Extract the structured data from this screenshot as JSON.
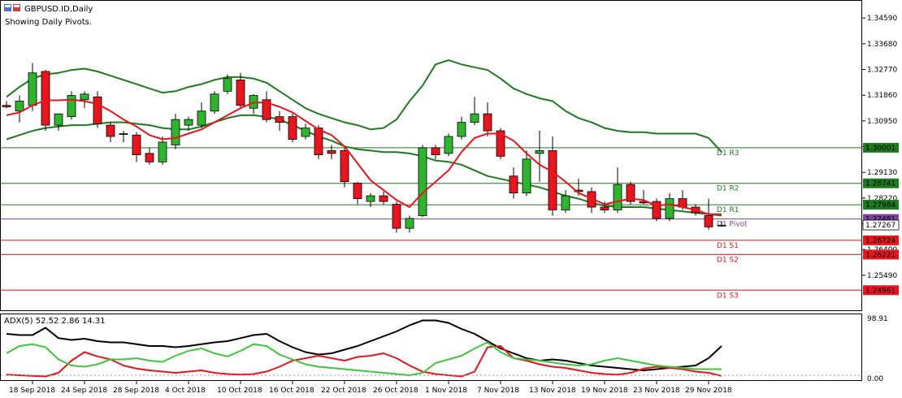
{
  "window": {
    "title": "GBPUSD.ID,Daily",
    "subtitle": "Showing Daily Pivots."
  },
  "colors": {
    "bull": "#2db62d",
    "bear": "#e8141e",
    "ma": "#e8141e",
    "bands": "#1e7a1e",
    "resistance": "#1e7a1e",
    "support": "#e8141e",
    "pivot": "#8040a0",
    "adx_main": "#000000",
    "adx_plus": "#e8141e",
    "adx_minus": "#3cc83c"
  },
  "chart_data": [
    {
      "type": "candlestick",
      "title": "GBPUSD.ID,Daily",
      "ylim": [
        1.2425,
        1.352
      ],
      "yticks": [
        "1.34590",
        "1.33680",
        "1.32770",
        "1.31860",
        "1.30950",
        "1.30040",
        "1.29130",
        "1.28220",
        "1.27310",
        "1.26400",
        "1.25490"
      ],
      "xticks": [
        {
          "label": "18 Sep 2018",
          "index": 2
        },
        {
          "label": "24 Sep 2018",
          "index": 6
        },
        {
          "label": "28 Sep 2018",
          "index": 10
        },
        {
          "label": "4 Oct 2018",
          "index": 14
        },
        {
          "label": "10 Oct 2018",
          "index": 18
        },
        {
          "label": "16 Oct 2018",
          "index": 22
        },
        {
          "label": "22 Oct 2018",
          "index": 26
        },
        {
          "label": "26 Oct 2018",
          "index": 30
        },
        {
          "label": "1 Nov 2018",
          "index": 34
        },
        {
          "label": "7 Nov 2018",
          "index": 38
        },
        {
          "label": "13 Nov 2018",
          "index": 42
        },
        {
          "label": "19 Nov 2018",
          "index": 46
        },
        {
          "label": "23 Nov 2018",
          "index": 50
        },
        {
          "label": "29 Nov 2018",
          "index": 54
        }
      ],
      "candles": [
        {
          "o": 1.315,
          "h": 1.3165,
          "l": 1.314,
          "c": 1.3145
        },
        {
          "o": 1.313,
          "h": 1.3185,
          "l": 1.309,
          "c": 1.3165
        },
        {
          "o": 1.315,
          "h": 1.33,
          "l": 1.313,
          "c": 1.3265
        },
        {
          "o": 1.327,
          "h": 1.3275,
          "l": 1.306,
          "c": 1.308
        },
        {
          "o": 1.308,
          "h": 1.312,
          "l": 1.306,
          "c": 1.312
        },
        {
          "o": 1.311,
          "h": 1.32,
          "l": 1.31,
          "c": 1.3185
        },
        {
          "o": 1.317,
          "h": 1.32,
          "l": 1.314,
          "c": 1.319
        },
        {
          "o": 1.318,
          "h": 1.32,
          "l": 1.307,
          "c": 1.3085
        },
        {
          "o": 1.308,
          "h": 1.309,
          "l": 1.302,
          "c": 1.304
        },
        {
          "o": 1.305,
          "h": 1.306,
          "l": 1.302,
          "c": 1.305
        },
        {
          "o": 1.3045,
          "h": 1.3055,
          "l": 1.295,
          "c": 1.2975
        },
        {
          "o": 1.298,
          "h": 1.3,
          "l": 1.294,
          "c": 1.295
        },
        {
          "o": 1.295,
          "h": 1.304,
          "l": 1.294,
          "c": 1.302
        },
        {
          "o": 1.301,
          "h": 1.312,
          "l": 1.2995,
          "c": 1.31
        },
        {
          "o": 1.308,
          "h": 1.311,
          "l": 1.306,
          "c": 1.31
        },
        {
          "o": 1.308,
          "h": 1.316,
          "l": 1.307,
          "c": 1.313
        },
        {
          "o": 1.313,
          "h": 1.32,
          "l": 1.312,
          "c": 1.319
        },
        {
          "o": 1.32,
          "h": 1.326,
          "l": 1.319,
          "c": 1.3245
        },
        {
          "o": 1.324,
          "h": 1.3265,
          "l": 1.314,
          "c": 1.315
        },
        {
          "o": 1.314,
          "h": 1.319,
          "l": 1.312,
          "c": 1.3185
        },
        {
          "o": 1.317,
          "h": 1.32,
          "l": 1.309,
          "c": 1.31
        },
        {
          "o": 1.311,
          "h": 1.313,
          "l": 1.306,
          "c": 1.309
        },
        {
          "o": 1.311,
          "h": 1.312,
          "l": 1.302,
          "c": 1.303
        },
        {
          "o": 1.304,
          "h": 1.3085,
          "l": 1.303,
          "c": 1.307
        },
        {
          "o": 1.307,
          "h": 1.308,
          "l": 1.296,
          "c": 1.2975
        },
        {
          "o": 1.299,
          "h": 1.301,
          "l": 1.296,
          "c": 1.298
        },
        {
          "o": 1.299,
          "h": 1.3,
          "l": 1.286,
          "c": 1.288
        },
        {
          "o": 1.2875,
          "h": 1.288,
          "l": 1.28,
          "c": 1.282
        },
        {
          "o": 1.281,
          "h": 1.284,
          "l": 1.279,
          "c": 1.283
        },
        {
          "o": 1.283,
          "h": 1.2845,
          "l": 1.28,
          "c": 1.281
        },
        {
          "o": 1.28,
          "h": 1.281,
          "l": 1.27,
          "c": 1.2715
        },
        {
          "o": 1.2715,
          "h": 1.276,
          "l": 1.27,
          "c": 1.275
        },
        {
          "o": 1.276,
          "h": 1.301,
          "l": 1.2755,
          "c": 1.3
        },
        {
          "o": 1.3,
          "h": 1.301,
          "l": 1.296,
          "c": 1.2975
        },
        {
          "o": 1.298,
          "h": 1.305,
          "l": 1.297,
          "c": 1.304
        },
        {
          "o": 1.304,
          "h": 1.311,
          "l": 1.303,
          "c": 1.309
        },
        {
          "o": 1.309,
          "h": 1.318,
          "l": 1.308,
          "c": 1.312
        },
        {
          "o": 1.312,
          "h": 1.316,
          "l": 1.304,
          "c": 1.306
        },
        {
          "o": 1.306,
          "h": 1.307,
          "l": 1.296,
          "c": 1.297
        },
        {
          "o": 1.29,
          "h": 1.293,
          "l": 1.282,
          "c": 1.284
        },
        {
          "o": 1.284,
          "h": 1.299,
          "l": 1.283,
          "c": 1.296
        },
        {
          "o": 1.298,
          "h": 1.306,
          "l": 1.288,
          "c": 1.299
        },
        {
          "o": 1.299,
          "h": 1.304,
          "l": 1.276,
          "c": 1.278
        },
        {
          "o": 1.278,
          "h": 1.285,
          "l": 1.277,
          "c": 1.283
        },
        {
          "o": 1.285,
          "h": 1.289,
          "l": 1.283,
          "c": 1.2845
        },
        {
          "o": 1.2845,
          "h": 1.286,
          "l": 1.277,
          "c": 1.279
        },
        {
          "o": 1.279,
          "h": 1.281,
          "l": 1.277,
          "c": 1.278
        },
        {
          "o": 1.278,
          "h": 1.293,
          "l": 1.277,
          "c": 1.287
        },
        {
          "o": 1.287,
          "h": 1.288,
          "l": 1.28,
          "c": 1.281
        },
        {
          "o": 1.281,
          "h": 1.285,
          "l": 1.28,
          "c": 1.2805
        },
        {
          "o": 1.281,
          "h": 1.282,
          "l": 1.274,
          "c": 1.275
        },
        {
          "o": 1.275,
          "h": 1.284,
          "l": 1.274,
          "c": 1.282
        },
        {
          "o": 1.282,
          "h": 1.285,
          "l": 1.278,
          "c": 1.279
        },
        {
          "o": 1.279,
          "h": 1.28,
          "l": 1.276,
          "c": 1.277
        },
        {
          "o": 1.276,
          "h": 1.282,
          "l": 1.271,
          "c": 1.272
        },
        {
          "o": 1.2725,
          "h": 1.274,
          "l": 1.272,
          "c": 1.2726
        }
      ],
      "moving_average": [
        1.3115,
        1.3125,
        1.315,
        1.3168,
        1.3168,
        1.317,
        1.3165,
        1.3155,
        1.313,
        1.31,
        1.3075,
        1.3045,
        1.303,
        1.3035,
        1.305,
        1.3065,
        1.309,
        1.3115,
        1.314,
        1.316,
        1.316,
        1.3145,
        1.3125,
        1.3095,
        1.3065,
        1.3045,
        1.3005,
        1.2945,
        1.2885,
        1.285,
        1.2815,
        1.279,
        1.284,
        1.288,
        1.292,
        1.2985,
        1.3035,
        1.305,
        1.305,
        1.3025,
        1.298,
        1.294,
        1.2915,
        1.288,
        1.284,
        1.282,
        1.28,
        1.281,
        1.282,
        1.2815,
        1.2795,
        1.28,
        1.279,
        1.278,
        1.2765,
        1.2765
      ],
      "upper_band": [
        1.318,
        1.3215,
        1.3245,
        1.326,
        1.3265,
        1.3275,
        1.328,
        1.327,
        1.3255,
        1.324,
        1.3225,
        1.321,
        1.3195,
        1.32,
        1.3215,
        1.3225,
        1.324,
        1.325,
        1.325,
        1.3245,
        1.323,
        1.32,
        1.317,
        1.314,
        1.312,
        1.3105,
        1.309,
        1.308,
        1.3065,
        1.307,
        1.31,
        1.3165,
        1.322,
        1.3295,
        1.331,
        1.3295,
        1.3285,
        1.3275,
        1.3245,
        1.321,
        1.319,
        1.3175,
        1.3165,
        1.313,
        1.3105,
        1.309,
        1.307,
        1.306,
        1.3055,
        1.3055,
        1.305,
        1.305,
        1.305,
        1.305,
        1.3035,
        1.2985
      ],
      "lower_band": [
        1.303,
        1.3045,
        1.306,
        1.307,
        1.3075,
        1.308,
        1.308,
        1.3085,
        1.309,
        1.309,
        1.3085,
        1.308,
        1.307,
        1.3065,
        1.3065,
        1.3075,
        1.309,
        1.3105,
        1.3115,
        1.3115,
        1.311,
        1.31,
        1.308,
        1.306,
        1.304,
        1.3025,
        1.3005,
        1.2995,
        1.299,
        1.2985,
        1.2985,
        1.298,
        1.297,
        1.2955,
        1.295,
        1.294,
        1.292,
        1.29,
        1.289,
        1.288,
        1.287,
        1.286,
        1.2845,
        1.283,
        1.282,
        1.2805,
        1.2795,
        1.279,
        1.279,
        1.279,
        1.2785,
        1.278,
        1.2775,
        1.277,
        1.2765,
        1.276
      ],
      "levels": [
        {
          "label": "D1 R3",
          "price_label": "1.30001",
          "value": 1.30001,
          "kind": "resistance"
        },
        {
          "label": "D1 R2",
          "price_label": "1.28741",
          "value": 1.28741,
          "kind": "resistance"
        },
        {
          "label": "D1 R1",
          "price_label": "1.27984",
          "value": 1.27984,
          "kind": "resistance"
        },
        {
          "label": "D1 Pivot",
          "price_label": "1.27481",
          "value": 1.27481,
          "kind": "pivot"
        },
        {
          "label": "D1 S1",
          "price_label": "1.26724",
          "value": 1.26724,
          "kind": "support"
        },
        {
          "label": "D1 S2",
          "price_label": "1.26221",
          "value": 1.26221,
          "kind": "support"
        },
        {
          "label": "D1 S3",
          "price_label": "1.24961",
          "value": 1.24961,
          "kind": "support"
        }
      ],
      "current_price": {
        "label": "1.27267",
        "value": 1.27267
      }
    },
    {
      "type": "line",
      "title": "ADX(5) 52.52 2.86 14.31",
      "ylim": [
        0,
        100
      ],
      "yticks": [
        "98.91",
        "0.00"
      ],
      "series": [
        {
          "values": [
            72,
            70,
            70,
            82,
            65,
            62,
            64,
            60,
            58,
            58,
            55,
            52,
            52,
            50,
            52,
            55,
            58,
            60,
            65,
            70,
            72,
            60,
            50,
            42,
            38,
            40,
            46,
            52,
            60,
            68,
            76,
            86,
            94,
            94,
            90,
            80,
            72,
            60,
            48,
            40,
            32,
            28,
            30,
            28,
            24,
            20,
            18,
            16,
            14,
            12,
            14,
            16,
            18,
            20,
            32,
            52
          ]
        },
        {
          "values": [
            5,
            4,
            3,
            2,
            8,
            28,
            42,
            35,
            30,
            20,
            15,
            12,
            10,
            8,
            10,
            12,
            8,
            6,
            5,
            6,
            10,
            18,
            28,
            32,
            36,
            32,
            28,
            34,
            36,
            40,
            32,
            20,
            10,
            6,
            4,
            2,
            10,
            50,
            52,
            32,
            28,
            22,
            18,
            16,
            12,
            8,
            6,
            5,
            8,
            15,
            18,
            16,
            14,
            10,
            8,
            3
          ]
        },
        {
          "values": [
            40,
            52,
            55,
            50,
            30,
            20,
            18,
            22,
            30,
            30,
            32,
            28,
            26,
            36,
            44,
            48,
            40,
            35,
            44,
            55,
            52,
            38,
            30,
            22,
            18,
            16,
            14,
            12,
            10,
            8,
            6,
            4,
            8,
            24,
            30,
            36,
            48,
            58,
            42,
            32,
            30,
            28,
            25,
            22,
            20,
            22,
            28,
            32,
            28,
            24,
            20,
            18,
            16,
            14,
            14,
            14
          ]
        }
      ]
    }
  ]
}
